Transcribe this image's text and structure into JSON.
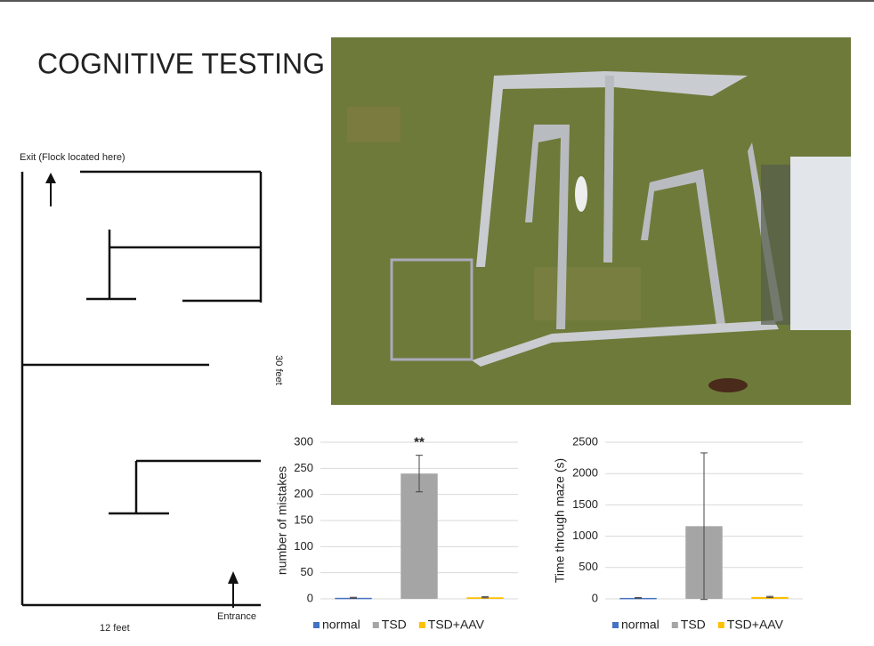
{
  "title": "COGNITIVE TESTING",
  "maze": {
    "exit_label": "Exit (Flock located here)",
    "entrance_label": "Entrance",
    "width_label": "12 feet",
    "height_label": "30 feet"
  },
  "chart_data": [
    {
      "type": "bar",
      "y_label": "number of mistakes",
      "annotation": "**",
      "categories": [
        "normal",
        "TSD",
        "TSD+AAV"
      ],
      "values": [
        2,
        240,
        3
      ],
      "errors": [
        1,
        35,
        1
      ],
      "colors": [
        "#4472c4",
        "#a5a5a5",
        "#ffc000"
      ],
      "ylim": [
        0,
        300
      ],
      "yticks": [
        0,
        50,
        100,
        150,
        200,
        250,
        300
      ],
      "grid": true,
      "legend": "bottom"
    },
    {
      "type": "bar",
      "y_label": "Time through maze (s)",
      "categories": [
        "normal",
        "TSD",
        "TSD+AAV"
      ],
      "values": [
        15,
        1160,
        30
      ],
      "errors": [
        5,
        1170,
        10
      ],
      "colors": [
        "#4472c4",
        "#a5a5a5",
        "#ffc000"
      ],
      "ylim": [
        0,
        2500
      ],
      "yticks": [
        0,
        500,
        1000,
        1500,
        2000,
        2500
      ],
      "grid": true,
      "legend": "bottom"
    }
  ]
}
